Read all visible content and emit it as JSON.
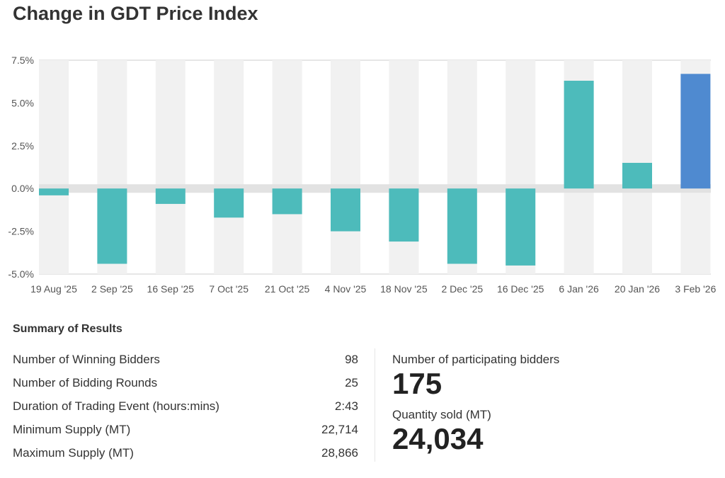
{
  "title": "Change in GDT Price Index",
  "chart_data": {
    "type": "bar",
    "categories": [
      "19 Aug '25",
      "2 Sep '25",
      "16 Sep '25",
      "7 Oct '25",
      "21 Oct '25",
      "4 Nov '25",
      "18 Nov '25",
      "2 Dec '25",
      "16 Dec '25",
      "6 Jan '26",
      "20 Jan '26",
      "3 Feb '26"
    ],
    "values": [
      -0.4,
      -4.4,
      -0.9,
      -1.7,
      -1.5,
      -2.5,
      -3.1,
      -4.4,
      -4.5,
      6.3,
      1.5,
      6.7
    ],
    "ylim": [
      -5,
      7.5
    ],
    "yticks": [
      7.5,
      5.0,
      2.5,
      0.0,
      -2.5,
      -5.0
    ],
    "ytick_labels": [
      "7.5%",
      "5.0%",
      "2.5%",
      "0.0%",
      "-2.5%",
      "-5.0%"
    ],
    "colors": {
      "bar": "#4dbbbb",
      "latest": "#4f8ad0",
      "band": "#f1f1f1",
      "zero": "#e2e2e2"
    }
  },
  "summary": {
    "title": "Summary of Results",
    "rows": [
      {
        "label": "Number of Winning Bidders",
        "value": "98"
      },
      {
        "label": "Number of Bidding Rounds",
        "value": "25"
      },
      {
        "label": "Duration of Trading Event (hours:mins)",
        "value": "2:43"
      },
      {
        "label": "Minimum Supply (MT)",
        "value": "22,714"
      },
      {
        "label": "Maximum Supply (MT)",
        "value": "28,866"
      }
    ],
    "participating_label": "Number of participating bidders",
    "participating_value": "175",
    "quantity_label": "Quantity sold (MT)",
    "quantity_value": "24,034"
  }
}
